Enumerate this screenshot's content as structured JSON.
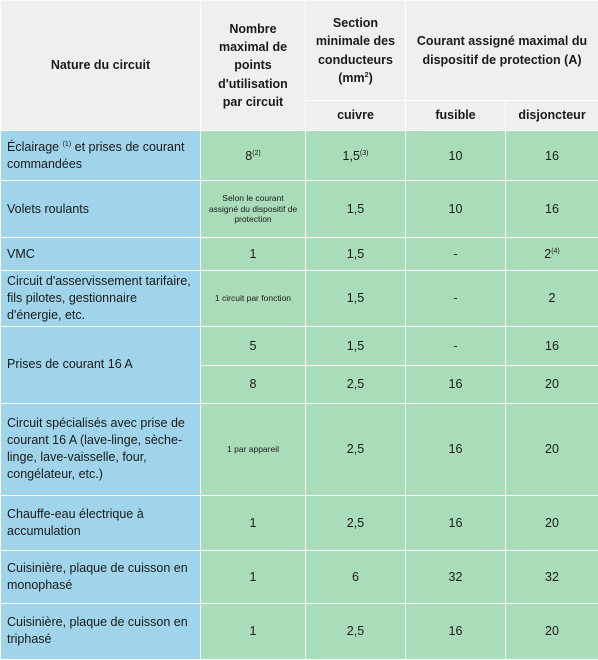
{
  "header": {
    "nature": "Nature du circuit",
    "points": "Nombre maximal de points d'utilisation par circuit",
    "section": {
      "text": "Section minimale des conducteurs (mm",
      "sup": "2",
      "after": ")"
    },
    "copper": "cuivre",
    "protection": "Courant assigné maximal du dispositif de protection (A)",
    "fuse": "fusible",
    "breaker": "disjoncteur"
  },
  "table": {
    "rows": [
      {
        "nature": {
          "text": "Éclairage ",
          "sup": "(1)",
          "after": " et prises de courant commandées"
        },
        "lines": [
          [
            {
              "text": "8",
              "sup": "(2)"
            },
            {
              "text": "1,5",
              "sup": "(3)"
            },
            "10",
            "16"
          ]
        ]
      },
      {
        "nature": "Volets roulants",
        "lines": [
          [
            "Selon le courant assigné du dispositif de protection",
            "1,5",
            "10",
            "16"
          ]
        ]
      },
      {
        "nature": "VMC",
        "lines": [
          [
            "1",
            "1,5",
            "-",
            {
              "text": "2",
              "sup": "(4)"
            }
          ]
        ]
      },
      {
        "nature": "Circuit d'asservissement tarifaire, fils pilotes, gestionnaire d'énergie, etc.",
        "lines": [
          [
            "1 circuit par fonction",
            "1,5",
            "-",
            "2"
          ]
        ]
      },
      {
        "nature": "Prises de courant 16 A",
        "lines": [
          [
            "5",
            "1,5",
            "-",
            "16"
          ],
          [
            "8",
            "2,5",
            "16",
            "20"
          ]
        ]
      },
      {
        "nature": "Circuit spécialisés avec prise de courant 16 A (lave-linge, sèche-linge, lave-vaisselle, four, congélateur, etc.)",
        "lines": [
          [
            "1 par appareil",
            "2,5",
            "16",
            "20"
          ]
        ]
      },
      {
        "nature": "Chauffe-eau électrique à accumulation",
        "lines": [
          [
            "1",
            "2,5",
            "16",
            "20"
          ]
        ]
      },
      {
        "nature": "Cuisinière, plaque de cuisson en monophasé",
        "lines": [
          [
            "1",
            "6",
            "32",
            "32"
          ]
        ]
      },
      {
        "nature": "Cuisinière, plaque de cuisson en triphasé",
        "lines": [
          [
            "1",
            "2,5",
            "16",
            "20"
          ]
        ]
      }
    ]
  }
}
